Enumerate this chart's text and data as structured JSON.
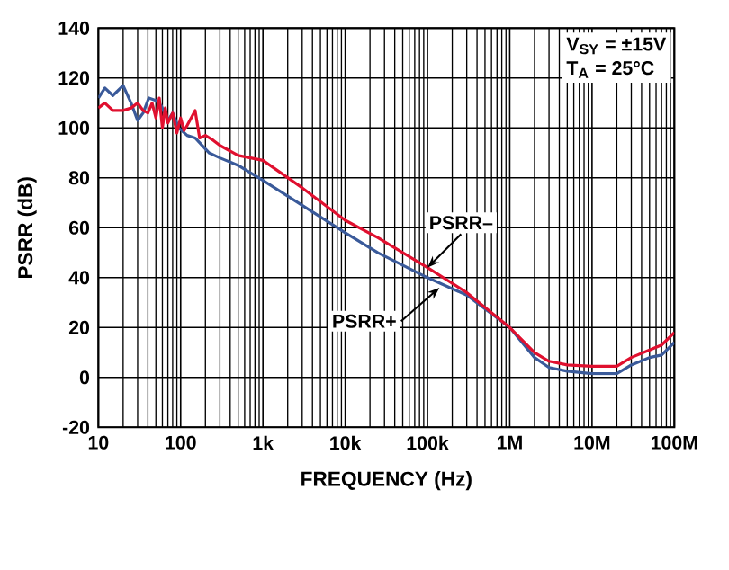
{
  "chart_data": {
    "type": "line",
    "xlabel": "FREQUENCY (Hz)",
    "ylabel": "PSRR (dB)",
    "log": "x",
    "grid": true,
    "marker": "none",
    "line_style": "solid",
    "xlim": [
      10,
      100000000
    ],
    "ylim": [
      -20,
      140
    ],
    "xticks": [
      10,
      100,
      {
        "value": 1000,
        "label": "1k"
      },
      {
        "value": 10000,
        "label": "10k"
      },
      {
        "value": 100000,
        "label": "100k"
      },
      {
        "value": 1000000,
        "label": "1M"
      },
      {
        "value": 10000000,
        "label": "10M"
      },
      {
        "value": 100000000,
        "label": "100M"
      }
    ],
    "yticks": [
      -20,
      0,
      20,
      40,
      60,
      80,
      100,
      120,
      140
    ],
    "annotations": [
      "V$_{SY}$ = ±15V",
      "T$_{A}$ = 25°C",
      {
        "text": "PSRR–",
        "x": 100000,
        "y": 44
      },
      {
        "text": "PSRR+",
        "x": 140000,
        "y": 36
      }
    ],
    "series": [
      {
        "color": "#3a5a9a",
        "x": [
          10,
          12,
          15,
          20,
          25,
          30,
          35,
          41,
          50,
          58,
          70,
          80,
          95,
          120,
          150,
          222,
          300,
          500,
          1000,
          3000,
          10000,
          25000,
          100000,
          300000,
          1000000,
          2000000,
          3000000,
          5000000,
          10000000,
          20000000,
          30000000,
          50000000,
          70000000,
          100000000
        ],
        "values": [
          112,
          116,
          113,
          117,
          110,
          103,
          106,
          112,
          111,
          109,
          103,
          106,
          100,
          97,
          96,
          90,
          88,
          85,
          79,
          69,
          58,
          50,
          40,
          33,
          20,
          8,
          4,
          2.5,
          1.5,
          1.5,
          5,
          8,
          9,
          14
        ]
      },
      {
        "color": "#e0102f",
        "x": [
          10,
          12,
          15,
          20,
          25,
          30,
          35,
          40,
          45,
          50,
          55,
          60,
          65,
          70,
          80,
          90,
          100,
          110,
          120,
          150,
          170,
          200,
          250,
          300,
          500,
          1000,
          3000,
          10000,
          25000,
          100000,
          300000,
          1000000,
          2000000,
          3000000,
          5000000,
          10000000,
          20000000,
          30000000,
          50000000,
          70000000,
          100000000
        ],
        "values": [
          108,
          110,
          107,
          107,
          108,
          110,
          107,
          106,
          110,
          104,
          112,
          100,
          108,
          102,
          106,
          98,
          104,
          99,
          101,
          107,
          96,
          97,
          95,
          93,
          89,
          87,
          76,
          63,
          56,
          44,
          34,
          20,
          10,
          6.5,
          5,
          4.5,
          4.5,
          8,
          11,
          13,
          18
        ]
      }
    ]
  }
}
